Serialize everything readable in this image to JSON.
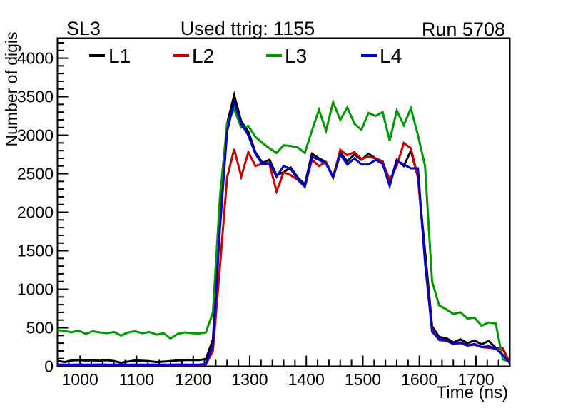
{
  "page": {
    "background": "#ffffff"
  },
  "header": {
    "left_title": "SL3",
    "center_title": "Used ttrig: 1155",
    "right_title": "Run 5708"
  },
  "legend": {
    "position": "top-inside",
    "items": [
      {
        "label": "L1",
        "color": "#000000"
      },
      {
        "label": "L2",
        "color": "#cc0000"
      },
      {
        "label": "L3",
        "color": "#009900"
      },
      {
        "label": "L4",
        "color": "#0000cc"
      }
    ]
  },
  "axes": {
    "xlabel": "Time (ns)",
    "ylabel": "Number of digis"
  },
  "chart_data": {
    "type": "line",
    "title": "Used ttrig: 1155",
    "subtitle_left": "SL3",
    "subtitle_right": "Run 5708",
    "xlabel": "Time (ns)",
    "ylabel": "Number of digis",
    "xlim": [
      960,
      1760
    ],
    "ylim": [
      0,
      4260
    ],
    "grid": false,
    "legend_position": "top-inside",
    "x_major_ticks": [
      1000,
      1100,
      1200,
      1300,
      1400,
      1500,
      1600,
      1700
    ],
    "x_minor_step": 20,
    "y_major_ticks": [
      0,
      500,
      1000,
      1500,
      2000,
      2500,
      3000,
      3500,
      4000
    ],
    "y_minor_step": 100,
    "x": [
      960,
      972.5,
      985,
      997.5,
      1010,
      1022.5,
      1035,
      1047.5,
      1060,
      1072.5,
      1085,
      1097.5,
      1110,
      1122.5,
      1135,
      1147.5,
      1160,
      1172.5,
      1185,
      1197.5,
      1210,
      1222.5,
      1235,
      1247.5,
      1260,
      1272.5,
      1285,
      1297.5,
      1310,
      1322.5,
      1335,
      1347.5,
      1360,
      1372.5,
      1385,
      1397.5,
      1410,
      1422.5,
      1435,
      1447.5,
      1460,
      1472.5,
      1485,
      1497.5,
      1510,
      1522.5,
      1535,
      1547.5,
      1560,
      1572.5,
      1585,
      1597.5,
      1610,
      1622.5,
      1635,
      1647.5,
      1660,
      1672.5,
      1685,
      1697.5,
      1710,
      1722.5,
      1735,
      1747.5,
      1760
    ],
    "series": [
      {
        "name": "L1",
        "color": "#000000",
        "values": [
          70,
          55,
          75,
          80,
          75,
          78,
          72,
          80,
          68,
          45,
          62,
          75,
          72,
          66,
          55,
          60,
          68,
          76,
          80,
          82,
          80,
          95,
          350,
          1900,
          3150,
          3520,
          3180,
          3050,
          2780,
          2640,
          2680,
          2480,
          2520,
          2580,
          2450,
          2360,
          2760,
          2700,
          2650,
          2460,
          2780,
          2660,
          2750,
          2680,
          2760,
          2700,
          2660,
          2360,
          2680,
          2600,
          2800,
          2450,
          1500,
          520,
          380,
          365,
          310,
          350,
          300,
          335,
          285,
          330,
          240,
          225,
          50
        ]
      },
      {
        "name": "L2",
        "color": "#cc0000",
        "values": [
          18,
          16,
          17,
          18,
          16,
          17,
          18,
          17,
          16,
          15,
          17,
          18,
          16,
          17,
          15,
          16,
          17,
          18,
          16,
          8,
          12,
          25,
          200,
          1300,
          2450,
          2820,
          2460,
          2780,
          2600,
          2630,
          2620,
          2270,
          2520,
          2480,
          2420,
          2330,
          2680,
          2600,
          2650,
          2450,
          2810,
          2740,
          2780,
          2690,
          2720,
          2700,
          2650,
          2420,
          2600,
          2900,
          2830,
          2450,
          1400,
          480,
          340,
          330,
          290,
          300,
          270,
          280,
          250,
          240,
          230,
          235,
          40
        ]
      },
      {
        "name": "L3",
        "color": "#009900",
        "values": [
          470,
          460,
          440,
          465,
          420,
          455,
          440,
          430,
          445,
          400,
          440,
          455,
          430,
          445,
          410,
          430,
          360,
          420,
          440,
          430,
          425,
          440,
          700,
          2200,
          3150,
          3340,
          3100,
          3120,
          2980,
          2900,
          2830,
          2770,
          2870,
          2860,
          2840,
          2770,
          3060,
          3330,
          3060,
          3430,
          3200,
          3360,
          3150,
          3070,
          3290,
          3250,
          3300,
          2930,
          3320,
          3130,
          3350,
          3000,
          2600,
          1100,
          790,
          740,
          680,
          700,
          620,
          630,
          525,
          570,
          555,
          90,
          60
        ]
      },
      {
        "name": "L4",
        "color": "#0000cc",
        "values": [
          22,
          20,
          21,
          22,
          20,
          21,
          22,
          21,
          20,
          20,
          21,
          22,
          20,
          21,
          20,
          20,
          21,
          22,
          21,
          20,
          20,
          30,
          280,
          1800,
          3050,
          3430,
          3150,
          3000,
          2760,
          2620,
          2640,
          2460,
          2600,
          2560,
          2430,
          2330,
          2720,
          2680,
          2630,
          2450,
          2750,
          2620,
          2700,
          2620,
          2620,
          2680,
          2630,
          2340,
          2670,
          2620,
          2570,
          2570,
          1350,
          450,
          350,
          340,
          290,
          310,
          270,
          290,
          250,
          260,
          230,
          150,
          40
        ]
      }
    ]
  }
}
